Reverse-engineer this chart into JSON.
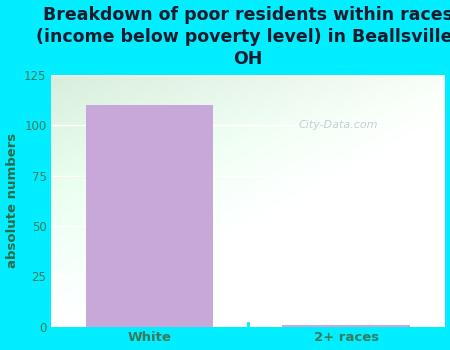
{
  "title": "Breakdown of poor residents within races\n(income below poverty level) in Beallsville,\nOH",
  "categories": [
    "White",
    "2+ races"
  ],
  "values": [
    110,
    1
  ],
  "bar_color": "#c8a8d8",
  "ylabel": "absolute numbers",
  "ylim": [
    0,
    125
  ],
  "yticks": [
    0,
    25,
    50,
    75,
    100,
    125
  ],
  "background_color": "#00eeff",
  "plot_bg_left": "#d8eedd",
  "plot_bg_right": "#f5faf5",
  "title_color": "#1a1a2e",
  "axis_label_color": "#2a6b4a",
  "tick_color": "#3a7a5a",
  "watermark": "City-Data.com",
  "title_fontsize": 12.5,
  "ylabel_fontsize": 9.5,
  "tick_fontsize": 8.5,
  "xtick_fontsize": 9.5
}
